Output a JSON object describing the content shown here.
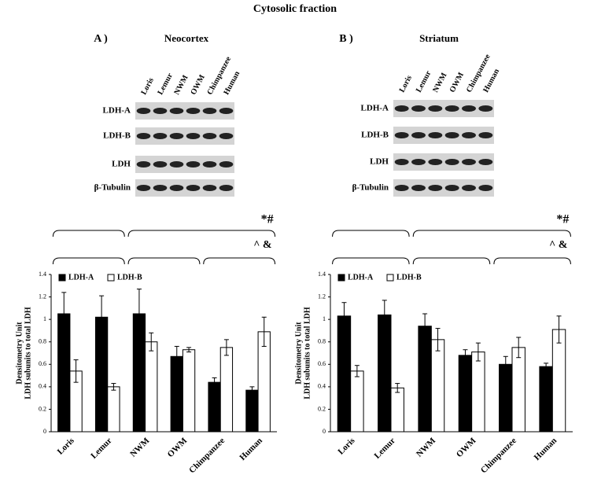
{
  "figure": {
    "title": "Cytosolic fraction",
    "panels": [
      {
        "label": "A )",
        "lanes": [
          "Loris",
          "Lemur",
          "NWM",
          "OWM",
          "Chimpanzee",
          "Human"
        ],
        "blot_rows": [
          "LDH-A",
          "LDH-B",
          "LDH",
          "β-Tubulin"
        ]
      },
      {
        "label": "B )",
        "lanes": [
          "Loris",
          "Lemur",
          "NWM",
          "OWM",
          "Chimpanzee",
          "Human"
        ],
        "blot_rows": [
          "LDH-A",
          "LDH-B",
          "LDH",
          "β-Tubulin"
        ]
      }
    ]
  },
  "chart_data": [
    {
      "type": "bar",
      "title": "Neocortex",
      "ylabel": [
        "Densitometry Unit",
        "LDH subunits to total LDH"
      ],
      "categories": [
        "Loris",
        "Lemur",
        "NWM",
        "OWM",
        "Chimpanzee",
        "Human"
      ],
      "series": [
        {
          "name": "LDH-A",
          "color": "#000000",
          "values": [
            1.05,
            1.02,
            1.05,
            0.67,
            0.44,
            0.37
          ],
          "errors": [
            0.19,
            0.19,
            0.22,
            0.09,
            0.04,
            0.03
          ]
        },
        {
          "name": "LDH-B",
          "color": "#ffffff",
          "values": [
            0.54,
            0.4,
            0.8,
            0.73,
            0.75,
            0.89
          ],
          "errors": [
            0.1,
            0.03,
            0.08,
            0.02,
            0.07,
            0.13
          ]
        }
      ],
      "ylim": [
        0,
        1.4
      ],
      "yticks": [
        0,
        0.2,
        0.4,
        0.6,
        0.8,
        1,
        1.2,
        1.4
      ],
      "legend": "top-left",
      "annotations": [
        "*#",
        "^ &"
      ]
    },
    {
      "type": "bar",
      "title": "Striatum",
      "ylabel": [
        "Densitometry Unit",
        "LDH subunits to total LDH"
      ],
      "categories": [
        "Loris",
        "Lemur",
        "NWM",
        "OWM",
        "Chimpanzee",
        "Human"
      ],
      "series": [
        {
          "name": "LDH-A",
          "color": "#000000",
          "values": [
            1.03,
            1.04,
            0.94,
            0.68,
            0.6,
            0.58
          ],
          "errors": [
            0.12,
            0.13,
            0.11,
            0.05,
            0.07,
            0.03
          ]
        },
        {
          "name": "LDH-B",
          "color": "#ffffff",
          "values": [
            0.54,
            0.39,
            0.82,
            0.71,
            0.75,
            0.91
          ],
          "errors": [
            0.05,
            0.04,
            0.1,
            0.08,
            0.09,
            0.12
          ]
        }
      ],
      "ylim": [
        0,
        1.4
      ],
      "yticks": [
        0,
        0.2,
        0.4,
        0.6,
        0.8,
        1,
        1.2,
        1.4
      ],
      "legend": "top-left",
      "annotations": [
        "*#",
        "^ &"
      ]
    }
  ]
}
